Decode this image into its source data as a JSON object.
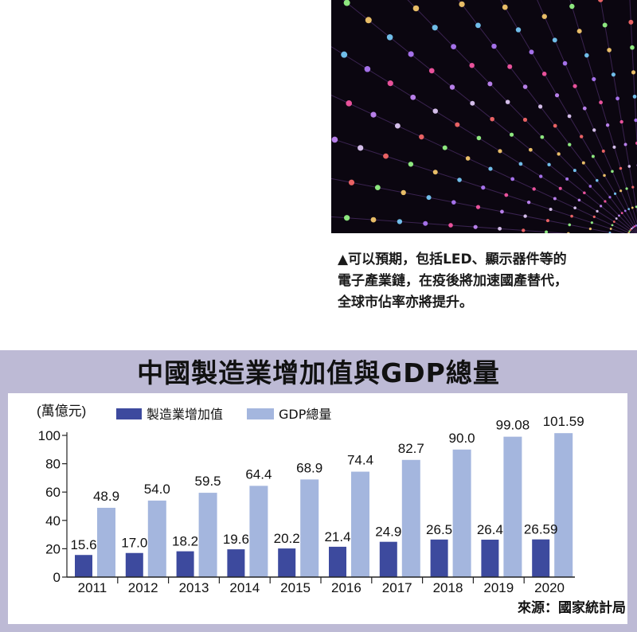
{
  "caption": {
    "lines": [
      "▲可以預期，包括LED、顯示器件等的",
      "電子產業鏈，在疫後將加速國產替代，",
      "全球市佔率亦將提升。"
    ]
  },
  "source": "來源：國家統計局",
  "colors": {
    "panel": "#bdbad5",
    "series_manufacturing": "#3d4a9e",
    "series_gdp": "#a4b6de",
    "photo_bg": "#0b0610"
  },
  "chart_data": {
    "type": "bar",
    "title": "中國製造業增加值與GDP總量",
    "ylabel": "(萬億元)",
    "categories": [
      "2011",
      "2012",
      "2013",
      "2014",
      "2015",
      "2016",
      "2017",
      "2018",
      "2019",
      "2020"
    ],
    "series": [
      {
        "name": "製造業增加值",
        "values": [
          15.6,
          17.0,
          18.2,
          19.6,
          20.2,
          21.4,
          24.9,
          26.5,
          26.4,
          26.59
        ],
        "labels": [
          "15.6",
          "17.0",
          "18.2",
          "19.6",
          "20.2",
          "21.4",
          "24.9",
          "26.5",
          "26.4",
          "26.59"
        ]
      },
      {
        "name": "GDP總量",
        "values": [
          48.9,
          54.0,
          59.5,
          64.4,
          68.9,
          74.4,
          82.7,
          90.0,
          99.08,
          101.59
        ],
        "labels": [
          "48.9",
          "54.0",
          "59.5",
          "64.4",
          "68.9",
          "74.4",
          "82.7",
          "90.0",
          "99.08",
          "101.59"
        ]
      }
    ],
    "ylim": [
      0,
      100
    ],
    "yticks": [
      "0",
      "20",
      "40",
      "60",
      "80",
      "100"
    ],
    "legend": "top-left",
    "grid": false
  }
}
